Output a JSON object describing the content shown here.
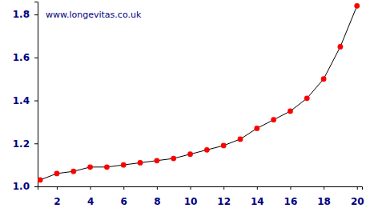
{
  "chart_data": {
    "type": "line",
    "annotations": [
      "www.longevitas.co.uk"
    ],
    "x": [
      1,
      2,
      3,
      4,
      5,
      6,
      7,
      8,
      9,
      10,
      11,
      12,
      13,
      14,
      15,
      16,
      17,
      18,
      19,
      20
    ],
    "values": [
      1.03,
      1.06,
      1.07,
      1.09,
      1.09,
      1.1,
      1.11,
      1.12,
      1.13,
      1.15,
      1.17,
      1.19,
      1.22,
      1.27,
      1.31,
      1.35,
      1.41,
      1.5,
      1.65,
      1.84
    ],
    "color": "#000000",
    "marker": "circle",
    "line_style": "solid",
    "xlim": [
      0.85,
      20.3
    ],
    "xticks": [
      2,
      4,
      6,
      8,
      10,
      12,
      14,
      16,
      18,
      20
    ],
    "ylim": [
      1.0,
      1.86
    ],
    "yticks": [
      {
        "value": 1.0,
        "label": "1.0"
      },
      1.2,
      1.4,
      1.6,
      1.8
    ],
    "grid": false
  }
}
